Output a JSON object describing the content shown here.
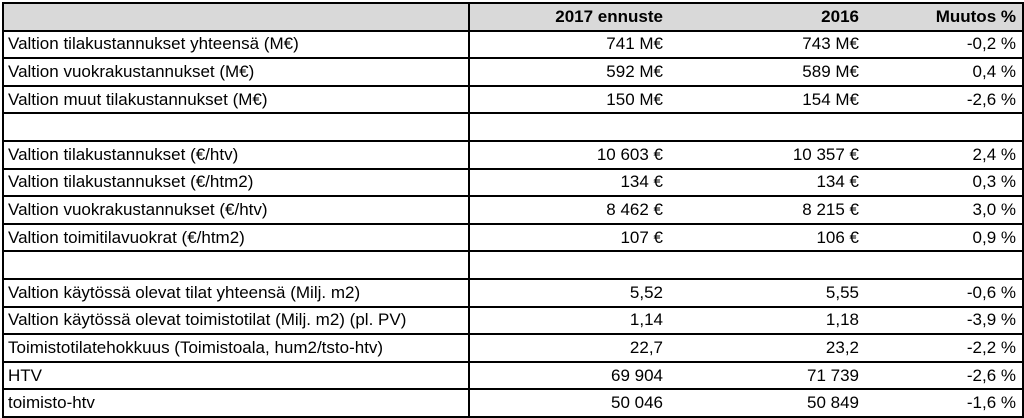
{
  "header": {
    "col0": "",
    "col1": "2017 ennuste",
    "col2": "2016",
    "col3": "Muutos %"
  },
  "rows": [
    {
      "label": "Valtion tilakustannukset yhteensä (M€)",
      "v2017": "741 M€",
      "v2016": "743 M€",
      "change": "-0,2 %"
    },
    {
      "label": "Valtion vuokrakustannukset (M€)",
      "v2017": "592 M€",
      "v2016": "589 M€",
      "change": "0,4 %"
    },
    {
      "label": "Valtion muut tilakustannukset (M€)",
      "v2017": "150 M€",
      "v2016": "154 M€",
      "change": "-2,6 %"
    },
    {
      "label": "",
      "v2017": "",
      "v2016": "",
      "change": ""
    },
    {
      "label": "Valtion tilakustannukset (€/htv)",
      "v2017": "10 603 €",
      "v2016": "10 357 €",
      "change": "2,4 %"
    },
    {
      "label": "Valtion tilakustannukset (€/htm2)",
      "v2017": "134 €",
      "v2016": "134 €",
      "change": "0,3 %"
    },
    {
      "label": "Valtion vuokrakustannukset (€/htv)",
      "v2017": "8 462 €",
      "v2016": "8 215 €",
      "change": "3,0 %"
    },
    {
      "label": "Valtion toimitilavuokrat (€/htm2)",
      "v2017": "107 €",
      "v2016": "106 €",
      "change": "0,9 %"
    },
    {
      "label": "",
      "v2017": "",
      "v2016": "",
      "change": ""
    },
    {
      "label": "Valtion käytössä olevat tilat yhteensä (Milj. m2)",
      "v2017": "5,52",
      "v2016": "5,55",
      "change": "-0,6 %"
    },
    {
      "label": "Valtion käytössä olevat toimistotilat (Milj. m2) (pl. PV)",
      "v2017": "1,14",
      "v2016": "1,18",
      "change": "-3,9 %"
    },
    {
      "label": "Toimistotilatehokkuus (Toimistoala, hum2/tsto-htv)",
      "v2017": "22,7",
      "v2016": "23,2",
      "change": "-2,2 %"
    },
    {
      "label": "HTV",
      "v2017": "69 904",
      "v2016": "71 739",
      "change": "-2,6 %"
    },
    {
      "label": "toimisto-htv",
      "v2017": "50 046",
      "v2016": "50 849",
      "change": "-1,6 %"
    }
  ]
}
